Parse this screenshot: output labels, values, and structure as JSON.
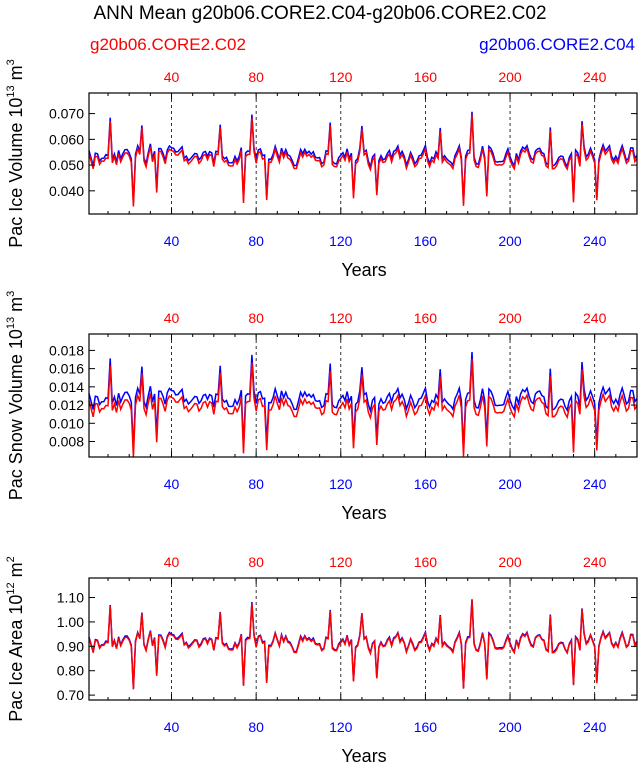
{
  "title": "ANN Mean g20b06.CORE2.C04-g20b06.CORE2.C02",
  "legend": [
    {
      "name": "g20b06.CORE2.C02",
      "color": "#ff0000"
    },
    {
      "name": "g20b06.CORE2.C04",
      "color": "#0000ff"
    }
  ],
  "colors": {
    "red": "#ff0000",
    "blue": "#0000ff",
    "frame": "#000000"
  },
  "chart_data": [
    {
      "type": "line",
      "title": "",
      "ylabel": "Pac Ice Volume 10",
      "ylabel_exp": "13",
      "ylabel_unit": " m",
      "ylabel_unit_exp": "3",
      "xlabel": "Years",
      "xlim": [
        1,
        260
      ],
      "ylim": [
        0.031,
        0.078
      ],
      "yticks": [
        0.04,
        0.05,
        0.06,
        0.07
      ],
      "ytick_labels": [
        "0.040",
        "0.050",
        "0.060",
        "0.070"
      ],
      "xticks": [
        40,
        80,
        120,
        160,
        200,
        240
      ],
      "xtick_labels": [
        "40",
        "80",
        "120",
        "160",
        "200",
        "240"
      ],
      "base": 0.0555,
      "amp": 0.0083,
      "offset": 0.0012,
      "series": [
        {
          "name": "g20b06.CORE2.C02",
          "color": "#ff0000"
        },
        {
          "name": "g20b06.CORE2.C04",
          "color": "#0000ff"
        }
      ]
    },
    {
      "type": "line",
      "title": "",
      "ylabel": "Pac Snow Volume 10",
      "ylabel_exp": "13",
      "ylabel_unit": " m",
      "ylabel_unit_exp": "3",
      "xlabel": "Years",
      "xlim": [
        1,
        260
      ],
      "ylim": [
        0.0063,
        0.0198
      ],
      "yticks": [
        0.008,
        0.01,
        0.012,
        0.014,
        0.016,
        0.018
      ],
      "ytick_labels": [
        "0.008",
        "0.010",
        "0.012",
        "0.014",
        "0.016",
        "0.018"
      ],
      "xticks": [
        40,
        80,
        120,
        160,
        200,
        240
      ],
      "xtick_labels": [
        "40",
        "80",
        "120",
        "160",
        "200",
        "240"
      ],
      "base": 0.0128,
      "amp": 0.0025,
      "offset": 0.0008,
      "series": [
        {
          "name": "g20b06.CORE2.C02",
          "color": "#ff0000"
        },
        {
          "name": "g20b06.CORE2.C04",
          "color": "#0000ff"
        }
      ]
    },
    {
      "type": "line",
      "title": "",
      "ylabel": "Pac Ice Area 10",
      "ylabel_exp": "12",
      "ylabel_unit": " m",
      "ylabel_unit_exp": "2",
      "xlabel": "Years",
      "xlim": [
        1,
        260
      ],
      "ylim": [
        0.68,
        1.18
      ],
      "yticks": [
        0.7,
        0.8,
        0.9,
        1.0,
        1.1
      ],
      "ytick_labels": [
        "0.70",
        "0.80",
        "0.90",
        "1.00",
        "1.10"
      ],
      "xticks": [
        40,
        80,
        120,
        160,
        200,
        240
      ],
      "xtick_labels": [
        "40",
        "80",
        "120",
        "160",
        "200",
        "240"
      ],
      "base": 0.945,
      "amp": 0.085,
      "offset": 0.004,
      "series": [
        {
          "name": "g20b06.CORE2.C02",
          "color": "#ff0000"
        },
        {
          "name": "g20b06.CORE2.C04",
          "color": "#0000ff"
        }
      ]
    }
  ]
}
